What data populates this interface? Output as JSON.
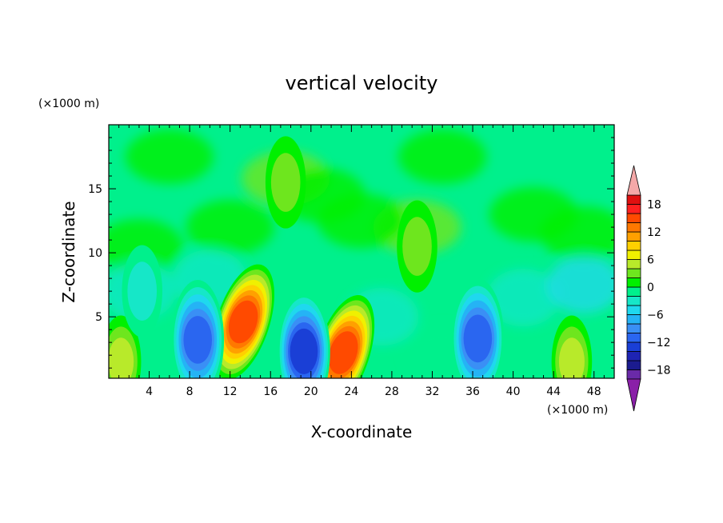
{
  "chart_data": {
    "type": "heatmap",
    "title": "vertical velocity",
    "xlabel": "X-coordinate",
    "ylabel": "Z-coordinate",
    "x_unit": "(×1000 m)",
    "y_unit": "(×1000 m)",
    "xlim": [
      0,
      50
    ],
    "ylim": [
      0.2,
      20
    ],
    "x_ticks": [
      "4",
      "8",
      "12",
      "16",
      "20",
      "24",
      "28",
      "32",
      "36",
      "40",
      "44",
      "48"
    ],
    "y_ticks": [
      "5",
      "10",
      "15"
    ],
    "colorbar": {
      "labels": [
        "18",
        "12",
        "6",
        "0",
        "−6",
        "−12",
        "−18"
      ],
      "levels": [
        -20,
        -18,
        -16,
        -14,
        -12,
        -10,
        -8,
        -6,
        -4,
        -2,
        0,
        2,
        4,
        6,
        8,
        10,
        12,
        14,
        16,
        18,
        20
      ],
      "colors": [
        "#6a2aa8",
        "#1b1b8f",
        "#1e24b4",
        "#1a3fd6",
        "#2a66f0",
        "#3a8ff5",
        "#25b3f5",
        "#1fd8ee",
        "#16e7c8",
        "#00f08c",
        "#00f000",
        "#6ee61e",
        "#b8ea2a",
        "#f0f000",
        "#ffd000",
        "#ffa000",
        "#ff7800",
        "#ff4a00",
        "#ff2020",
        "#e01010"
      ],
      "under_color": "#8a20a8",
      "over_color": "#f4a8a8"
    },
    "features": [
      {
        "x": 13.3,
        "z": 4.6,
        "value": 16
      },
      {
        "x": 23.2,
        "z": 2.2,
        "value": 15
      },
      {
        "x": 19.3,
        "z": 2.3,
        "value": -14
      },
      {
        "x": 8.8,
        "z": 3.2,
        "value": -12
      },
      {
        "x": 36.5,
        "z": 3.3,
        "value": -12
      },
      {
        "x": 45.8,
        "z": 1.5,
        "value": 6
      },
      {
        "x": 1.2,
        "z": 1.5,
        "value": 5
      },
      {
        "x": 30.5,
        "z": 10.5,
        "value": 4
      },
      {
        "x": 17.5,
        "z": 15.5,
        "value": 3
      },
      {
        "x": 3.3,
        "z": 7.0,
        "value": -4
      }
    ]
  }
}
